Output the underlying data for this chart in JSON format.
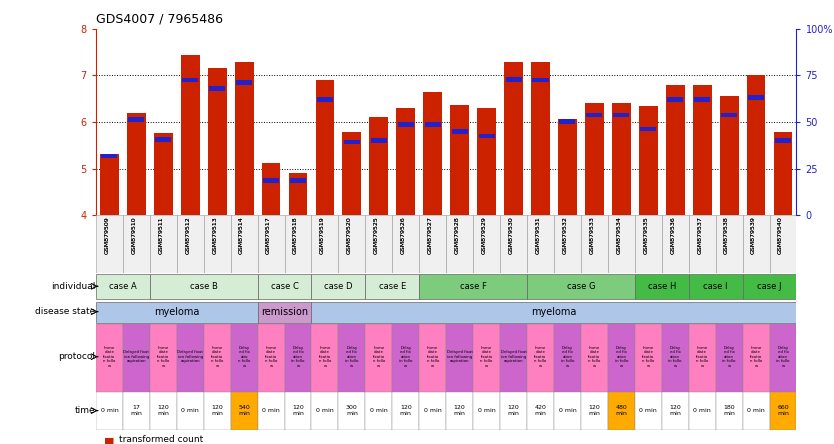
{
  "title": "GDS4007 / 7965486",
  "samples": [
    "GSM879509",
    "GSM879510",
    "GSM879511",
    "GSM879512",
    "GSM879513",
    "GSM879514",
    "GSM879517",
    "GSM879518",
    "GSM879519",
    "GSM879520",
    "GSM879525",
    "GSM879526",
    "GSM879527",
    "GSM879528",
    "GSM879529",
    "GSM879530",
    "GSM879531",
    "GSM879532",
    "GSM879533",
    "GSM879534",
    "GSM879535",
    "GSM879536",
    "GSM879537",
    "GSM879538",
    "GSM879539",
    "GSM879540"
  ],
  "red_values": [
    5.32,
    6.2,
    5.77,
    7.45,
    7.15,
    7.28,
    5.12,
    4.9,
    6.9,
    5.78,
    6.1,
    6.3,
    6.65,
    6.37,
    6.3,
    7.28,
    7.28,
    6.07,
    6.42,
    6.42,
    6.35,
    6.8,
    6.8,
    6.55,
    7.0,
    5.78
  ],
  "blue_values": [
    5.22,
    6.0,
    5.58,
    6.85,
    6.67,
    6.8,
    4.7,
    4.7,
    6.43,
    5.52,
    5.55,
    5.9,
    5.9,
    5.75,
    5.65,
    6.87,
    6.85,
    5.96,
    6.1,
    6.1,
    5.8,
    6.43,
    6.43,
    6.1,
    6.48,
    5.55
  ],
  "ylim": [
    4.0,
    8.0
  ],
  "yticks": [
    4,
    5,
    6,
    7,
    8
  ],
  "right_yticks": [
    0,
    25,
    50,
    75,
    100
  ],
  "individuals": [
    {
      "label": "case A",
      "start": 0,
      "end": 2,
      "color": "#d5ecd5"
    },
    {
      "label": "case B",
      "start": 2,
      "end": 6,
      "color": "#d5ecd5"
    },
    {
      "label": "case C",
      "start": 6,
      "end": 8,
      "color": "#d5ecd5"
    },
    {
      "label": "case D",
      "start": 8,
      "end": 10,
      "color": "#d5ecd5"
    },
    {
      "label": "case E",
      "start": 10,
      "end": 12,
      "color": "#d5ecd5"
    },
    {
      "label": "case F",
      "start": 12,
      "end": 16,
      "color": "#7dcc7d"
    },
    {
      "label": "case G",
      "start": 16,
      "end": 20,
      "color": "#7dcc7d"
    },
    {
      "label": "case H",
      "start": 20,
      "end": 22,
      "color": "#44bb44"
    },
    {
      "label": "case I",
      "start": 22,
      "end": 24,
      "color": "#44bb44"
    },
    {
      "label": "case J",
      "start": 24,
      "end": 26,
      "color": "#44bb44"
    }
  ],
  "disease_states": [
    {
      "label": "myeloma",
      "start": 0,
      "end": 6,
      "color": "#aec6e8"
    },
    {
      "label": "remission",
      "start": 6,
      "end": 8,
      "color": "#cc99cc"
    },
    {
      "label": "myeloma",
      "start": 8,
      "end": 26,
      "color": "#aec6e8"
    }
  ],
  "protocols": [
    {
      "label": "Imme\ndiate\nfixatio\nn follo\nw",
      "color": "#ff80c0"
    },
    {
      "label": "Delayed fixat\nion following\naspiration",
      "color": "#cc66cc"
    },
    {
      "label": "Imme\ndiate\nfixatio\nn follo\nw",
      "color": "#ff80c0"
    },
    {
      "label": "Delayed fixat\nion following\naspiration",
      "color": "#cc66cc"
    },
    {
      "label": "Imme\ndiate\nfixatio\nn follo\nw",
      "color": "#ff80c0"
    },
    {
      "label": "Delay\ned fix\natio\nn follo\nw",
      "color": "#cc66cc"
    },
    {
      "label": "Imme\ndiate\nfixatio\nn follo\nw",
      "color": "#ff80c0"
    },
    {
      "label": "Delay\ned fix\nation\nin follo\nw",
      "color": "#cc66cc"
    },
    {
      "label": "Imme\ndiate\nfixatio\nn follo\nw",
      "color": "#ff80c0"
    },
    {
      "label": "Delay\ned fix\nation\nin follo\nw",
      "color": "#cc66cc"
    },
    {
      "label": "Imme\ndiate\nfixatio\nn follo\nw",
      "color": "#ff80c0"
    },
    {
      "label": "Delay\ned fix\nation\nin follo\nw",
      "color": "#cc66cc"
    },
    {
      "label": "Imme\ndiate\nfixatio\nn follo\nw",
      "color": "#ff80c0"
    },
    {
      "label": "Delayed fixat\nion following\naspiration",
      "color": "#cc66cc"
    },
    {
      "label": "Imme\ndiate\nfixatio\nn follo\nw",
      "color": "#ff80c0"
    },
    {
      "label": "Delayed fixat\nion following\naspiration",
      "color": "#cc66cc"
    },
    {
      "label": "Imme\ndiate\nfixatio\nn follo\nw",
      "color": "#ff80c0"
    },
    {
      "label": "Delay\ned fix\nation\nin follo\nw",
      "color": "#cc66cc"
    },
    {
      "label": "Imme\ndiate\nfixatio\nn follo\nw",
      "color": "#ff80c0"
    },
    {
      "label": "Delay\ned fix\nation\nin follo\nw",
      "color": "#cc66cc"
    },
    {
      "label": "Imme\ndiate\nfixatio\nn follo\nw",
      "color": "#ff80c0"
    },
    {
      "label": "Delay\ned fix\nation\nin follo\nw",
      "color": "#cc66cc"
    },
    {
      "label": "Imme\ndiate\nfixatio\nn follo\nw",
      "color": "#ff80c0"
    },
    {
      "label": "Delay\ned fix\nation\nin follo\nw",
      "color": "#cc66cc"
    },
    {
      "label": "Imme\ndiate\nfixatio\nn follo\nw",
      "color": "#ff80c0"
    },
    {
      "label": "Delay\ned fix\nation\nin follo\nw",
      "color": "#cc66cc"
    }
  ],
  "times": [
    {
      "label": "0 min",
      "color": "#ffffff"
    },
    {
      "label": "17\nmin",
      "color": "#ffffff"
    },
    {
      "label": "120\nmin",
      "color": "#ffffff"
    },
    {
      "label": "0 min",
      "color": "#ffffff"
    },
    {
      "label": "120\nmin",
      "color": "#ffffff"
    },
    {
      "label": "540\nmin",
      "color": "#ffaa00"
    },
    {
      "label": "0 min",
      "color": "#ffffff"
    },
    {
      "label": "120\nmin",
      "color": "#ffffff"
    },
    {
      "label": "0 min",
      "color": "#ffffff"
    },
    {
      "label": "300\nmin",
      "color": "#ffffff"
    },
    {
      "label": "0 min",
      "color": "#ffffff"
    },
    {
      "label": "120\nmin",
      "color": "#ffffff"
    },
    {
      "label": "0 min",
      "color": "#ffffff"
    },
    {
      "label": "120\nmin",
      "color": "#ffffff"
    },
    {
      "label": "0 min",
      "color": "#ffffff"
    },
    {
      "label": "120\nmin",
      "color": "#ffffff"
    },
    {
      "label": "420\nmin",
      "color": "#ffffff"
    },
    {
      "label": "0 min",
      "color": "#ffffff"
    },
    {
      "label": "120\nmin",
      "color": "#ffffff"
    },
    {
      "label": "480\nmin",
      "color": "#ffaa00"
    },
    {
      "label": "0 min",
      "color": "#ffffff"
    },
    {
      "label": "120\nmin",
      "color": "#ffffff"
    },
    {
      "label": "0 min",
      "color": "#ffffff"
    },
    {
      "label": "180\nmin",
      "color": "#ffffff"
    },
    {
      "label": "0 min",
      "color": "#ffffff"
    },
    {
      "label": "660\nmin",
      "color": "#ffaa00"
    }
  ],
  "bar_color": "#cc2200",
  "blue_color": "#2222cc",
  "bg_color": "#ffffff",
  "left_axis_color": "#cc2200",
  "right_axis_color": "#2222cc"
}
